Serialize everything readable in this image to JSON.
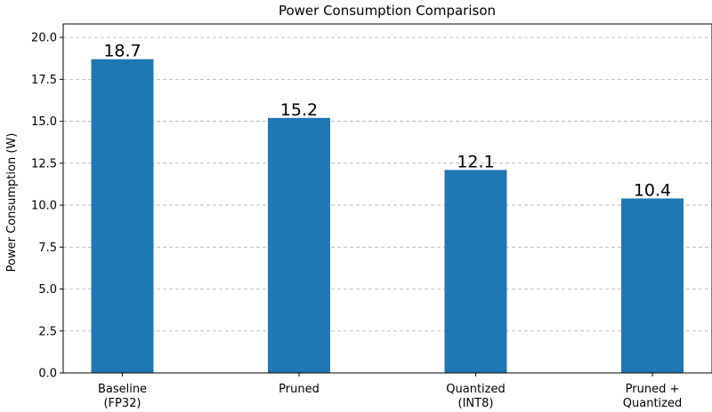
{
  "chart_data": {
    "type": "bar",
    "title": "Power Consumption Comparison",
    "xlabel": "",
    "ylabel": "Power Consumption (W)",
    "categories": [
      [
        "Baseline",
        "(FP32)"
      ],
      [
        "Pruned"
      ],
      [
        "Quantized",
        "(INT8)"
      ],
      [
        "Pruned +",
        "Quantized"
      ]
    ],
    "values": [
      18.7,
      15.2,
      12.1,
      10.4
    ],
    "data_labels": [
      "18.7",
      "15.2",
      "12.1",
      "10.4"
    ],
    "ylim": [
      0,
      20.8
    ],
    "yticks": [
      0.0,
      2.5,
      5.0,
      7.5,
      10.0,
      12.5,
      15.0,
      17.5,
      20.0
    ],
    "ytick_labels": [
      "0.0",
      "2.5",
      "5.0",
      "7.5",
      "10.0",
      "12.5",
      "15.0",
      "17.5",
      "20.0"
    ],
    "grid": "y-dashed",
    "legend": "none",
    "bar_color": "#1f77b4"
  }
}
